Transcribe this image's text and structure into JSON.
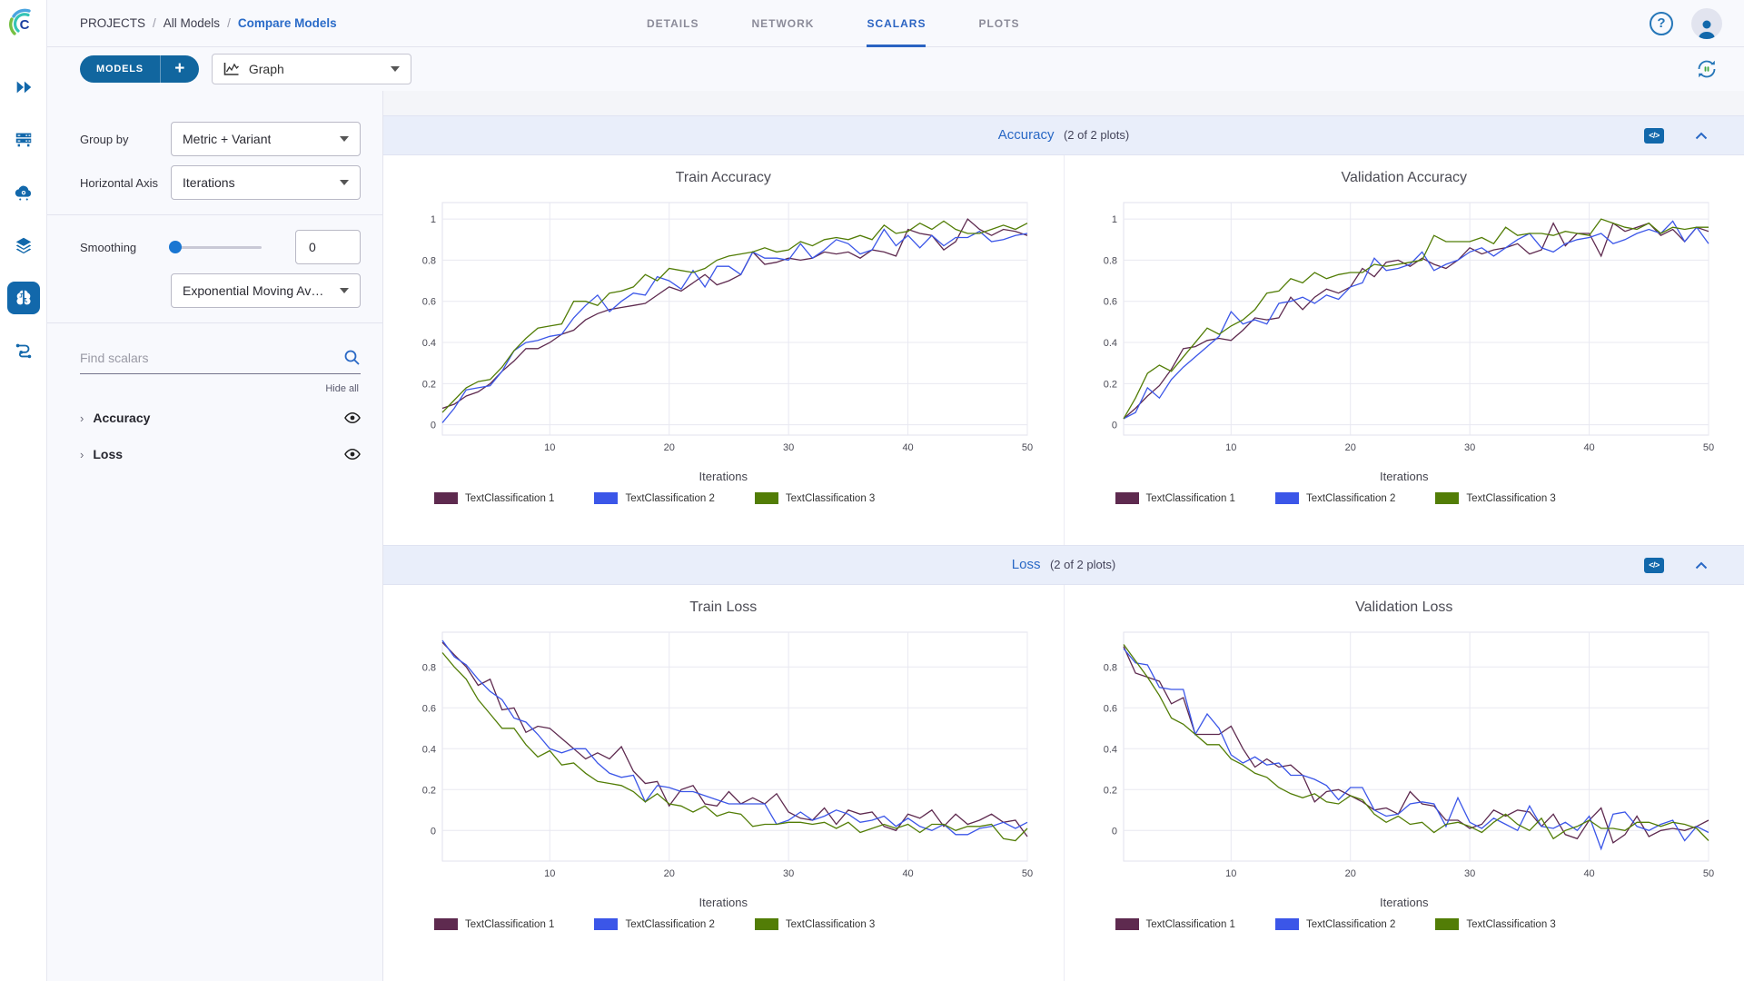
{
  "header": {
    "breadcrumb": {
      "items": [
        "PROJECTS",
        "All Models",
        "Compare Models"
      ],
      "separator": "/"
    },
    "tabs": [
      {
        "label": "DETAILS",
        "active": false
      },
      {
        "label": "NETWORK",
        "active": false
      },
      {
        "label": "SCALARS",
        "active": true
      },
      {
        "label": "PLOTS",
        "active": false
      }
    ],
    "help_label": "?"
  },
  "toolbar": {
    "models_label": "MODELS",
    "add_label": "+",
    "view_value": "Graph"
  },
  "sidebar": {
    "items": [
      {
        "name": "getting-started",
        "icon": "double-chevron-icon",
        "active": false
      },
      {
        "name": "queues",
        "icon": "server-icon",
        "active": false
      },
      {
        "name": "applications",
        "icon": "cloud-gear-icon",
        "active": false
      },
      {
        "name": "datasets",
        "icon": "layers-icon",
        "active": false
      },
      {
        "name": "models",
        "icon": "brain-icon",
        "active": true
      },
      {
        "name": "pipelines",
        "icon": "pipeline-icon",
        "active": false
      }
    ]
  },
  "left_panel": {
    "group_by_label": "Group by",
    "group_by_value": "Metric + Variant",
    "horizontal_axis_label": "Horizontal Axis",
    "horizontal_axis_value": "Iterations",
    "smoothing_label": "Smoothing",
    "smoothing_value": "0",
    "smoothing_type_value": "Exponential Moving Av…",
    "search_placeholder": "Find scalars",
    "hide_all_label": "Hide all",
    "metric_groups": [
      {
        "chevron": "›",
        "label": "Accuracy"
      },
      {
        "chevron": "›",
        "label": "Loss"
      }
    ]
  },
  "sections": [
    {
      "title": "Accuracy",
      "subtitle": "(2 of 2 plots)",
      "embed_label": "</>"
    },
    {
      "title": "Loss",
      "subtitle": "(2 of 2 plots)",
      "embed_label": "</>"
    }
  ],
  "colors": {
    "accent_blue": "#1268ab",
    "link_blue": "#2a6bc8",
    "tab_active_blue": "#2a63c2",
    "section_header_bg": "#e9eefa",
    "series1": "#5e2a4f",
    "series2": "#3b56e8",
    "series3": "#527d06"
  },
  "chart_data": [
    {
      "type": "line",
      "title": "Train Accuracy",
      "xlabel": "Iterations",
      "x_range": [
        1,
        50
      ],
      "xticks": [
        10,
        20,
        30,
        40,
        50
      ],
      "yticks": [
        0,
        0.2,
        0.4,
        0.6,
        0.8,
        1
      ],
      "ylim": [
        -0.05,
        1.08
      ],
      "grid": true,
      "legend_position": "bottom-left",
      "series": [
        {
          "name": "TextClassification 1",
          "color": "#5e2a4f",
          "values": [
            0.08,
            0.1,
            0.14,
            0.16,
            0.2,
            0.26,
            0.31,
            0.37,
            0.37,
            0.4,
            0.44,
            0.46,
            0.51,
            0.54,
            0.56,
            0.57,
            0.58,
            0.59,
            0.63,
            0.67,
            0.65,
            0.69,
            0.73,
            0.68,
            0.7,
            0.73,
            0.84,
            0.78,
            0.79,
            0.81,
            0.8,
            0.81,
            0.84,
            0.83,
            0.84,
            0.81,
            0.85,
            0.84,
            0.82,
            0.95,
            0.93,
            0.92,
            0.85,
            0.89,
            1.0,
            0.95,
            0.92,
            0.95,
            0.94,
            0.92
          ]
        },
        {
          "name": "TextClassification 2",
          "color": "#3b56e8",
          "values": [
            0.01,
            0.08,
            0.17,
            0.18,
            0.19,
            0.26,
            0.36,
            0.4,
            0.41,
            0.43,
            0.44,
            0.52,
            0.58,
            0.63,
            0.55,
            0.6,
            0.64,
            0.63,
            0.72,
            0.7,
            0.66,
            0.75,
            0.67,
            0.77,
            0.77,
            0.73,
            0.84,
            0.81,
            0.81,
            0.8,
            0.88,
            0.81,
            0.85,
            0.9,
            0.88,
            0.83,
            0.85,
            0.95,
            0.87,
            0.92,
            0.86,
            0.92,
            0.87,
            0.91,
            0.91,
            0.94,
            0.89,
            0.9,
            0.92,
            0.93
          ]
        },
        {
          "name": "TextClassification 3",
          "color": "#527d06",
          "values": [
            0.06,
            0.12,
            0.18,
            0.21,
            0.22,
            0.28,
            0.36,
            0.42,
            0.47,
            0.48,
            0.49,
            0.6,
            0.6,
            0.58,
            0.64,
            0.65,
            0.67,
            0.73,
            0.7,
            0.76,
            0.75,
            0.74,
            0.76,
            0.8,
            0.82,
            0.83,
            0.84,
            0.86,
            0.84,
            0.85,
            0.89,
            0.87,
            0.9,
            0.91,
            0.9,
            0.92,
            0.9,
            0.97,
            0.93,
            0.94,
            0.98,
            0.95,
            0.99,
            0.95,
            0.93,
            0.93,
            0.95,
            0.97,
            0.95,
            0.98
          ]
        }
      ]
    },
    {
      "type": "line",
      "title": "Validation Accuracy",
      "xlabel": "Iterations",
      "x_range": [
        1,
        50
      ],
      "xticks": [
        10,
        20,
        30,
        40,
        50
      ],
      "yticks": [
        0,
        0.2,
        0.4,
        0.6,
        0.8,
        1
      ],
      "ylim": [
        -0.05,
        1.08
      ],
      "grid": true,
      "legend_position": "bottom-left",
      "series": [
        {
          "name": "TextClassification 1",
          "color": "#5e2a4f",
          "values": [
            0.03,
            0.08,
            0.14,
            0.19,
            0.27,
            0.37,
            0.38,
            0.41,
            0.42,
            0.41,
            0.46,
            0.52,
            0.51,
            0.52,
            0.62,
            0.56,
            0.62,
            0.66,
            0.64,
            0.67,
            0.76,
            0.72,
            0.79,
            0.8,
            0.77,
            0.81,
            0.78,
            0.76,
            0.8,
            0.86,
            0.83,
            0.85,
            0.86,
            0.88,
            0.83,
            0.85,
            0.98,
            0.87,
            0.93,
            0.93,
            0.82,
            0.98,
            0.94,
            0.96,
            0.98,
            0.92,
            0.95,
            0.89,
            0.96,
            0.94
          ]
        },
        {
          "name": "TextClassification 2",
          "color": "#3b56e8",
          "values": [
            0.03,
            0.06,
            0.18,
            0.13,
            0.22,
            0.28,
            0.33,
            0.38,
            0.43,
            0.55,
            0.49,
            0.51,
            0.49,
            0.59,
            0.6,
            0.62,
            0.59,
            0.63,
            0.61,
            0.67,
            0.69,
            0.81,
            0.75,
            0.76,
            0.78,
            0.84,
            0.75,
            0.78,
            0.8,
            0.84,
            0.86,
            0.82,
            0.86,
            0.9,
            0.93,
            0.86,
            0.84,
            0.88,
            0.9,
            0.91,
            0.93,
            0.88,
            0.9,
            0.93,
            0.95,
            0.93,
            0.99,
            0.89,
            0.96,
            0.88
          ]
        },
        {
          "name": "TextClassification 3",
          "color": "#527d06",
          "values": [
            0.03,
            0.13,
            0.25,
            0.29,
            0.26,
            0.33,
            0.4,
            0.47,
            0.44,
            0.48,
            0.51,
            0.56,
            0.64,
            0.65,
            0.71,
            0.69,
            0.74,
            0.71,
            0.73,
            0.74,
            0.74,
            0.78,
            0.77,
            0.78,
            0.79,
            0.8,
            0.92,
            0.89,
            0.89,
            0.89,
            0.91,
            0.88,
            0.96,
            0.92,
            0.93,
            0.93,
            0.92,
            0.94,
            0.93,
            0.92,
            1.0,
            0.98,
            0.96,
            0.95,
            0.98,
            0.93,
            0.96,
            0.95,
            0.96,
            0.96
          ]
        }
      ]
    },
    {
      "type": "line",
      "title": "Train Loss",
      "xlabel": "Iterations",
      "x_range": [
        1,
        50
      ],
      "xticks": [
        10,
        20,
        30,
        40,
        50
      ],
      "yticks": [
        0,
        0.2,
        0.4,
        0.6,
        0.8
      ],
      "ylim": [
        -0.15,
        0.97
      ],
      "grid": true,
      "legend_position": "bottom-left",
      "series": [
        {
          "name": "TextClassification 1",
          "color": "#5e2a4f",
          "values": [
            0.92,
            0.86,
            0.8,
            0.71,
            0.74,
            0.59,
            0.6,
            0.48,
            0.51,
            0.5,
            0.45,
            0.4,
            0.35,
            0.38,
            0.35,
            0.41,
            0.29,
            0.23,
            0.24,
            0.12,
            0.2,
            0.22,
            0.13,
            0.12,
            0.19,
            0.13,
            0.16,
            0.13,
            0.18,
            0.09,
            0.06,
            0.05,
            0.11,
            0.03,
            0.1,
            0.08,
            0.09,
            0.02,
            0.0,
            0.08,
            0.06,
            0.1,
            0.02,
            0.08,
            0.03,
            0.05,
            0.08,
            0.04,
            0.05,
            -0.03
          ]
        },
        {
          "name": "TextClassification 2",
          "color": "#3b56e8",
          "values": [
            0.93,
            0.85,
            0.81,
            0.74,
            0.68,
            0.64,
            0.55,
            0.53,
            0.47,
            0.4,
            0.38,
            0.4,
            0.4,
            0.33,
            0.28,
            0.26,
            0.27,
            0.14,
            0.22,
            0.21,
            0.19,
            0.19,
            0.17,
            0.15,
            0.13,
            0.13,
            0.13,
            0.13,
            0.03,
            0.05,
            0.09,
            0.05,
            0.07,
            0.1,
            0.08,
            0.04,
            0.05,
            0.07,
            0.02,
            0.06,
            0.02,
            0.0,
            0.03,
            -0.02,
            -0.02,
            0.01,
            0.02,
            0.04,
            0.01,
            0.04
          ]
        },
        {
          "name": "TextClassification 3",
          "color": "#527d06",
          "values": [
            0.87,
            0.8,
            0.74,
            0.64,
            0.57,
            0.5,
            0.5,
            0.42,
            0.36,
            0.39,
            0.32,
            0.33,
            0.28,
            0.24,
            0.23,
            0.22,
            0.19,
            0.14,
            0.18,
            0.13,
            0.12,
            0.09,
            0.12,
            0.07,
            0.09,
            0.08,
            0.02,
            0.03,
            0.03,
            0.04,
            0.04,
            0.03,
            0.04,
            0.01,
            0.04,
            -0.01,
            0.01,
            0.03,
            0.01,
            0.03,
            -0.01,
            0.03,
            0.03,
            0.0,
            0.02,
            0.02,
            0.03,
            -0.04,
            -0.05,
            0.01
          ]
        }
      ]
    },
    {
      "type": "line",
      "title": "Validation Loss",
      "xlabel": "Iterations",
      "x_range": [
        1,
        50
      ],
      "xticks": [
        10,
        20,
        30,
        40,
        50
      ],
      "yticks": [
        0,
        0.2,
        0.4,
        0.6,
        0.8
      ],
      "ylim": [
        -0.15,
        0.97
      ],
      "grid": true,
      "legend_position": "bottom-left",
      "series": [
        {
          "name": "TextClassification 1",
          "color": "#5e2a4f",
          "values": [
            0.9,
            0.77,
            0.75,
            0.73,
            0.62,
            0.65,
            0.47,
            0.47,
            0.47,
            0.51,
            0.4,
            0.31,
            0.35,
            0.31,
            0.32,
            0.27,
            0.14,
            0.19,
            0.2,
            0.17,
            0.14,
            0.1,
            0.11,
            0.08,
            0.19,
            0.13,
            0.12,
            0.05,
            0.05,
            0.01,
            0.03,
            0.1,
            0.07,
            0.1,
            0.09,
            0.02,
            0.08,
            -0.02,
            -0.04,
            0.05,
            0.11,
            -0.06,
            -0.02,
            0.07,
            -0.03,
            0.0,
            0.01,
            0.0,
            0.02,
            0.05
          ]
        },
        {
          "name": "TextClassification 2",
          "color": "#3b56e8",
          "values": [
            0.89,
            0.82,
            0.81,
            0.7,
            0.69,
            0.69,
            0.47,
            0.57,
            0.5,
            0.37,
            0.33,
            0.36,
            0.32,
            0.33,
            0.27,
            0.27,
            0.25,
            0.22,
            0.15,
            0.21,
            0.21,
            0.1,
            0.07,
            0.08,
            0.13,
            0.14,
            0.13,
            0.02,
            0.16,
            0.04,
            0.01,
            0.06,
            0.03,
            0.0,
            0.12,
            0.02,
            0.01,
            0.04,
            0.0,
            0.07,
            -0.09,
            0.08,
            0.09,
            0.02,
            0.0,
            0.03,
            0.05,
            -0.05,
            0.02,
            -0.01
          ]
        },
        {
          "name": "TextClassification 3",
          "color": "#527d06",
          "values": [
            0.91,
            0.83,
            0.75,
            0.66,
            0.55,
            0.52,
            0.47,
            0.42,
            0.42,
            0.35,
            0.32,
            0.28,
            0.26,
            0.21,
            0.18,
            0.16,
            0.18,
            0.14,
            0.13,
            0.17,
            0.15,
            0.08,
            0.04,
            0.07,
            0.03,
            0.04,
            -0.01,
            0.03,
            0.04,
            0.02,
            -0.01,
            0.04,
            0.08,
            0.03,
            0.0,
            0.06,
            -0.04,
            0.0,
            0.02,
            0.05,
            0.01,
            0.01,
            0.0,
            0.04,
            0.04,
            0.02,
            0.04,
            0.03,
            0.01,
            -0.05
          ]
        }
      ]
    }
  ]
}
